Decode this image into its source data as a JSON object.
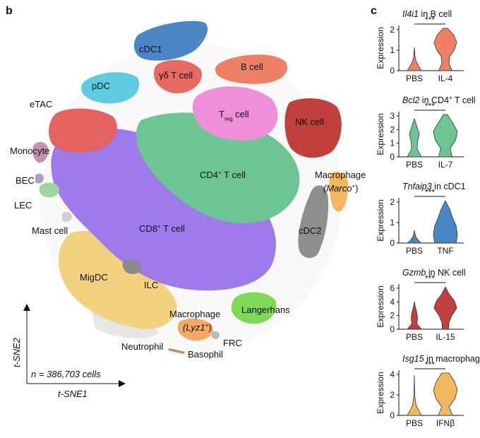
{
  "panels": {
    "b_letter": "b",
    "c_letter": "c"
  },
  "tsne": {
    "n_text": "n = 386,703 cells",
    "x_axis_label": "t-SNE1",
    "y_axis_label": "t-SNE2",
    "clusters": [
      {
        "key": "cdc1",
        "label": "cDC1",
        "color": "#4a86c5"
      },
      {
        "key": "gdt",
        "label": "γδ T cell",
        "color": "#e7695f"
      },
      {
        "key": "bcell",
        "label": "B cell",
        "color": "#ee8066"
      },
      {
        "key": "pdc",
        "label": "pDC",
        "color": "#5fcbe0"
      },
      {
        "key": "etac",
        "label": "eTAC",
        "color": "#e9636a"
      },
      {
        "key": "treg",
        "label": "T",
        "label_sub": "reg",
        "label_rest": " cell",
        "color": "#ef8ed9"
      },
      {
        "key": "nk",
        "label": "NK cell",
        "color": "#c0403e"
      },
      {
        "key": "monocyte",
        "label": "Monocyte",
        "color": "#e36262"
      },
      {
        "key": "cd4",
        "label": "CD4",
        "label_sup": "+",
        "label_rest": " T cell",
        "color": "#6cc694"
      },
      {
        "key": "macro_marco",
        "label": "Macrophage",
        "label2": "(Marco",
        "label2_sup": "+",
        "label2_rest": ")",
        "color": "#f3b760"
      },
      {
        "key": "bec",
        "label": "BEC",
        "color": "#a8a0c8"
      },
      {
        "key": "lec",
        "label": "LEC",
        "color": "#9bd6a0"
      },
      {
        "key": "mast",
        "label": "Mast cell",
        "color": "#cfcfcf"
      },
      {
        "key": "cd8",
        "label": "CD8",
        "label_sup": "+",
        "label_rest": " T cell",
        "color": "#9d7bea"
      },
      {
        "key": "cdc2",
        "label": "cDC2",
        "color": "#8e8e8e"
      },
      {
        "key": "migdc",
        "label": "MigDC",
        "color": "#f2d27e"
      },
      {
        "key": "ilc",
        "label": "ILC",
        "color": "#8a8a8a"
      },
      {
        "key": "langerhans",
        "label": "Langerhans",
        "color": "#7ed957"
      },
      {
        "key": "macro_lyz1",
        "label": "Macrophage",
        "label2": "(Lyz1",
        "label2_sup": "+",
        "label2_rest": ")",
        "color": "#f4a964"
      },
      {
        "key": "neutrophil",
        "label": "Neutrophil",
        "color": "#d9d9d9"
      },
      {
        "key": "frc",
        "label": "FRC",
        "color": "#bbbbbb"
      },
      {
        "key": "basophil",
        "label": "Basophil",
        "color": "#c88a4a"
      }
    ]
  },
  "violins": [
    {
      "gene": "Il4i1",
      "title_rest": " in B cell",
      "y_label": "Expression",
      "yticks": [
        "0",
        "1",
        "2"
      ],
      "ymax": 2,
      "groups": [
        "PBS",
        "IL-4"
      ],
      "significance": "***",
      "color": "#ee8066"
    },
    {
      "gene": "Bcl2",
      "title_rest": " in CD4",
      "title_sup": "+",
      "title_rest2": " T cell",
      "y_label": "Expression",
      "yticks": [
        "0",
        "1",
        "2",
        "3"
      ],
      "ymax": 3,
      "groups": [
        "PBS",
        "IL-7"
      ],
      "significance": "***",
      "color": "#6cc694"
    },
    {
      "gene": "Tnfaip3",
      "title_rest": " in cDC1",
      "y_label": "Expression",
      "yticks": [
        "0",
        "1",
        "2"
      ],
      "ymax": 2,
      "groups": [
        "PBS",
        "TNF"
      ],
      "significance": "***",
      "color": "#4a86c5"
    },
    {
      "gene": "Gzmb",
      "title_rest": " in NK cell",
      "y_label": "Expression",
      "yticks": [
        "0",
        "2",
        "4",
        "6"
      ],
      "ymax": 6,
      "groups": [
        "PBS",
        "IL-15"
      ],
      "significance": "***",
      "color": "#c0403e"
    },
    {
      "gene": "Isg15",
      "title_rest": " in macrophage",
      "y_label": "Expression",
      "yticks": [
        "0",
        "2",
        "4"
      ],
      "ymax": 4,
      "groups": [
        "PBS",
        "IFNβ"
      ],
      "significance": "***",
      "color": "#f3b760"
    }
  ]
}
